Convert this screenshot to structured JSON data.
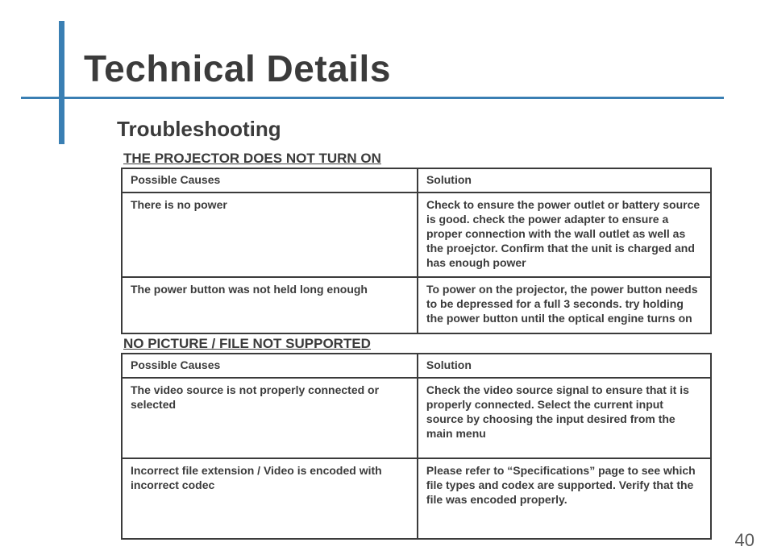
{
  "title": "Technical Details",
  "subtitle": "Troubleshooting",
  "page_number": "40",
  "colors": {
    "accent": "#3a7fb3",
    "text": "#3b3b3b",
    "background": "#ffffff"
  },
  "sections": [
    {
      "heading": "THE PROJECTOR DOES NOT TURN ON",
      "columns": [
        "Possible Causes",
        "Solution"
      ],
      "rows": [
        {
          "cause": "There is no power",
          "solution": "Check to ensure the power outlet or battery source is good.  check the power adapter to ensure a proper connection with the wall outlet as well as the proejctor.  Confirm that the unit is charged and has enough power"
        },
        {
          "cause": "The power button was not held long enough",
          "solution": "To power on the projector, the power button needs to be depressed for a full 3 seconds.  try holding the power button until the optical engine turns on"
        }
      ]
    },
    {
      "heading": "NO PICTURE / FILE NOT SUPPORTED",
      "columns": [
        "Possible Causes",
        "Solution"
      ],
      "rows": [
        {
          "cause": "The video source is not properly connected or selected",
          "solution": "Check the video source signal to ensure that it is properly connected.  Select the current input source by choosing the input desired from the main menu"
        },
        {
          "cause": "Incorrect file extension / Video is encoded with incorrect codec",
          "solution": "Please refer to “Specifications” page to see which file types and codex are supported.  Verify that the file was encoded properly."
        }
      ]
    }
  ]
}
